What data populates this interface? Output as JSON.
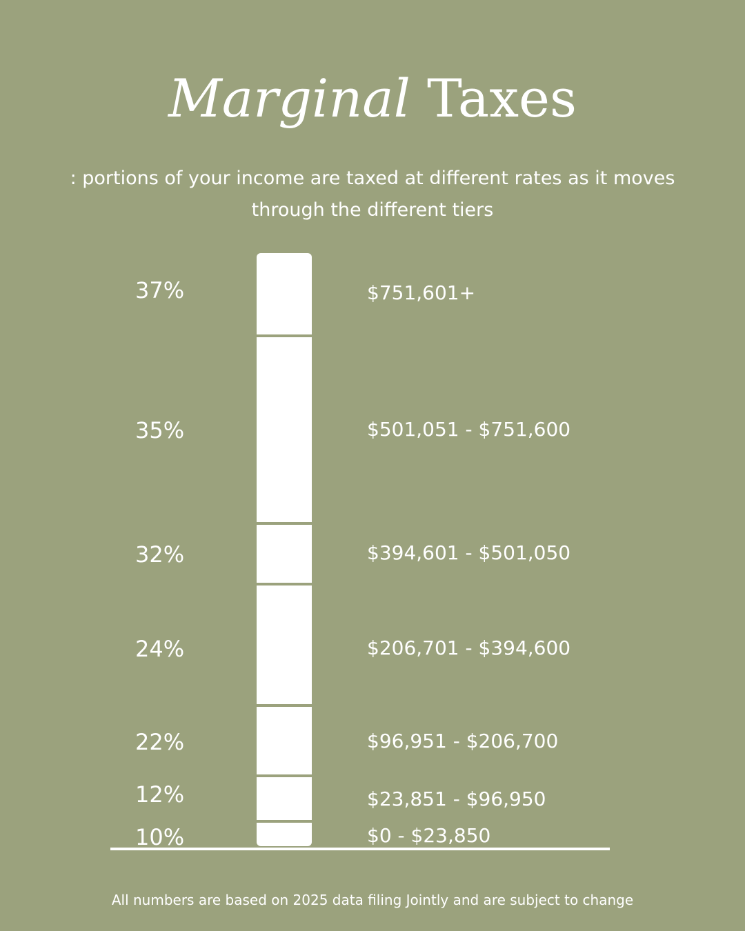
{
  "title": {
    "italic": "Marginal",
    "regular": "Taxes"
  },
  "subtitle": ": portions of your income are taxed at different rates as it moves through the different tiers",
  "brackets": [
    {
      "rate": "37%",
      "range": "$751,601+"
    },
    {
      "rate": "35%",
      "range": "$501,051 - $751,600"
    },
    {
      "rate": "32%",
      "range": "$394,601 - $501,050"
    },
    {
      "rate": "24%",
      "range": "$206,701 - $394,600"
    },
    {
      "rate": "22%",
      "range": "$96,951 - $206,700"
    },
    {
      "rate": "12%",
      "range": "$23,851 - $96,950"
    },
    {
      "rate": "10%",
      "range": "$0 - $23,850"
    }
  ],
  "footnote": "All numbers are based on 2025 data filing Jointly and are subject to change",
  "colors": {
    "background": "#9ba27d",
    "foreground": "#ffffff"
  }
}
